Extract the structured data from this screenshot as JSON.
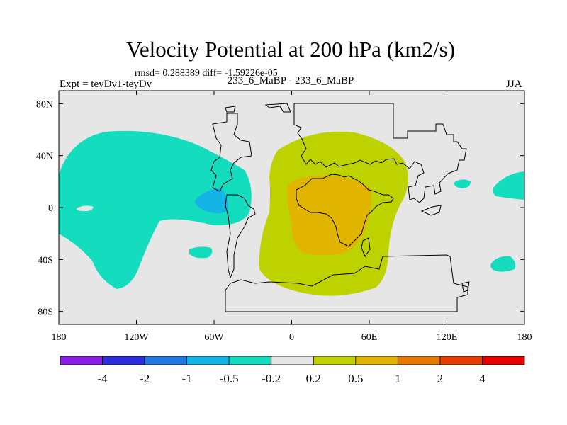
{
  "chart_data": {
    "type": "heatmap",
    "title": "Velocity Potential at 200 hPa (km2/s)",
    "subtitle_stats": "rmsd= 0.288389 diff= -1.59226e-05",
    "left_label": "Expt = teyDv1-teyDv",
    "center_label": "233_6_MaBP - 233_6_MaBP",
    "right_label": "JJA",
    "units": "km2/s",
    "x_axis": {
      "range": [
        -180,
        180
      ],
      "ticks": [
        {
          "value": -180,
          "label": "180"
        },
        {
          "value": -120,
          "label": "120W"
        },
        {
          "value": -60,
          "label": "60W"
        },
        {
          "value": 0,
          "label": "0"
        },
        {
          "value": 60,
          "label": "60E"
        },
        {
          "value": 120,
          "label": "120E"
        },
        {
          "value": 180,
          "label": "180"
        }
      ]
    },
    "y_axis": {
      "range": [
        -90,
        90
      ],
      "ticks": [
        {
          "value": 80,
          "label": "80N"
        },
        {
          "value": 40,
          "label": "40N"
        },
        {
          "value": 0,
          "label": "0"
        },
        {
          "value": -40,
          "label": "40S"
        },
        {
          "value": -80,
          "label": "80S"
        }
      ]
    },
    "colorbar": {
      "labels": [
        "-4",
        "-2",
        "-1",
        "-0.5",
        "-0.2",
        "0.2",
        "0.5",
        "1",
        "2",
        "4"
      ],
      "colors": [
        "#8a1ee6",
        "#2d2de0",
        "#1e78e0",
        "#14b4e6",
        "#14dcbe",
        "#e6e6e6",
        "#bed200",
        "#e1b400",
        "#e67800",
        "#e63c00",
        "#e60000"
      ]
    },
    "contour_regions": [
      {
        "name": "pacific-negative",
        "level": "-0.5 to -0.2",
        "lon_range": [
          -180,
          -30
        ],
        "lat_range": [
          -60,
          55
        ]
      },
      {
        "name": "central-america-negative",
        "level": "-1 to -0.5",
        "lon_range": [
          -65,
          -45
        ],
        "lat_range": [
          -2,
          15
        ]
      },
      {
        "name": "south-pacific-patch",
        "level": "-0.5 to -0.2",
        "lon_range": [
          -98,
          -78
        ],
        "lat_range": [
          -35,
          -27
        ]
      },
      {
        "name": "atlantic-africa-positive",
        "level": "0.2 to 0.5",
        "lon_range": [
          -25,
          90
        ],
        "lat_range": [
          -65,
          55
        ]
      },
      {
        "name": "africa-core-positive",
        "level": "0.5 to 1",
        "lon_range": [
          -5,
          55
        ],
        "lat_range": [
          -35,
          25
        ]
      },
      {
        "name": "west-pacific-patch",
        "level": "-0.5 to -0.2",
        "lon_range": [
          130,
          145
        ],
        "lat_range": [
          17,
          23
        ]
      },
      {
        "name": "east-pacific-patch",
        "level": "-0.5 to -0.2",
        "lon_range": [
          160,
          180
        ],
        "lat_range": [
          10,
          25
        ]
      },
      {
        "name": "south-indian-patch",
        "level": "-0.5 to -0.2",
        "lon_range": [
          152,
          170
        ],
        "lat_range": [
          -43,
          -35
        ]
      }
    ]
  }
}
